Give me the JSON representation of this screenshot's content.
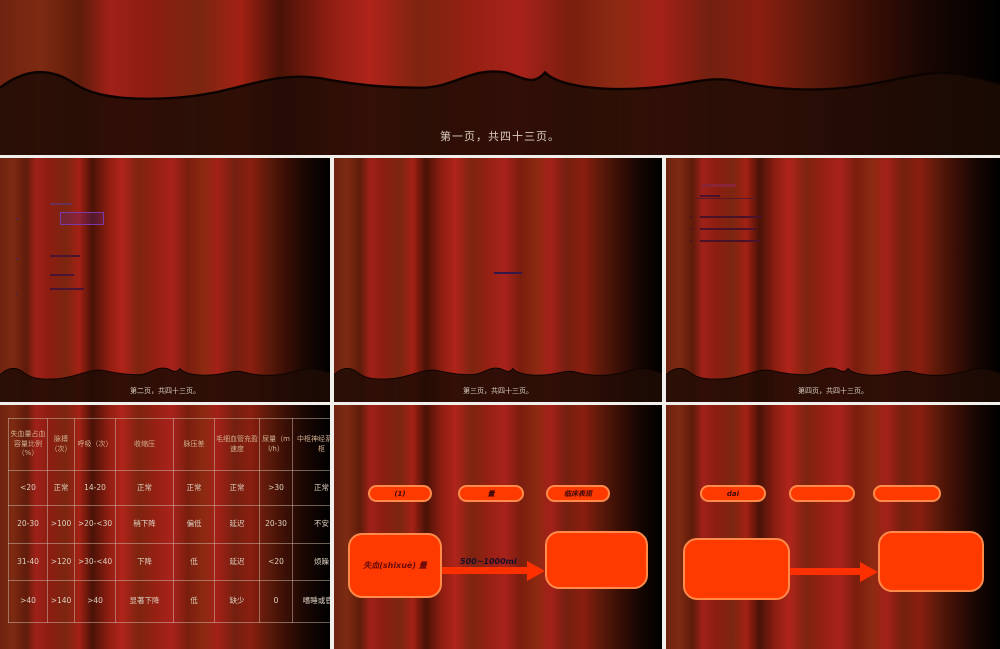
{
  "banner": {
    "footer": "第一页，共四十三页。"
  },
  "slides": [
    {
      "footer": "第二页，共四十三页。"
    },
    {
      "footer": "第三页，共四十三页。"
    },
    {
      "footer": "第四页，共四十三页。"
    }
  ],
  "table_slide": {
    "headers": [
      "失血量占血容量比例（%）",
      "脉搏（次）",
      "呼吸（次）",
      "收缩压",
      "脉压差",
      "毛细血管充盈速度",
      "尿量（ml/h）",
      "中枢神经系统中枢"
    ],
    "rows": [
      [
        "<20",
        "正常",
        "14-20",
        "正常",
        "正常",
        "正常",
        ">30",
        "正常"
      ],
      [
        "20-30",
        ">100",
        ">20-<30",
        "稍下降",
        "偏低",
        "延迟",
        "20-30",
        "不安"
      ],
      [
        "31-40",
        ">120",
        ">30-<40",
        "下降",
        "低",
        "延迟",
        "<20",
        "烦躁"
      ],
      [
        ">40",
        ">140",
        ">40",
        "显著下降",
        "低",
        "缺少",
        "0",
        "嗜睡或昏迷"
      ]
    ]
  },
  "flow_slide_a": {
    "pills": [
      "(1)",
      "量",
      "临床表现"
    ],
    "box_label": "失血(shixuè) 量",
    "arrow_label": "500~1000ml"
  },
  "flow_slide_b": {
    "pills": [
      "dai",
      "",
      ""
    ]
  },
  "colors": {
    "shape_fill": "#ff3a00",
    "shape_border": "#ff8a4a",
    "footer_text": "#d9cec0"
  }
}
